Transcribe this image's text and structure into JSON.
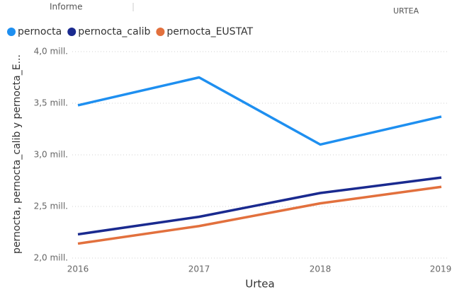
{
  "header_texts": [
    "Informe",
    "URTEA"
  ],
  "chart_data": {
    "type": "line",
    "x_label": "Urtea",
    "y_label": "pernocta, pernocta_calib y pernocta_E...",
    "x": [
      2016,
      2017,
      2018,
      2019
    ],
    "xlim": [
      2016,
      2019
    ],
    "xticks": [
      2016,
      2017,
      2018,
      2019
    ],
    "ylim": [
      2000000,
      4000000
    ],
    "yticks": [
      {
        "value": 2000000,
        "label": "2,0 mill."
      },
      {
        "value": 2500000,
        "label": "2,5 mill."
      },
      {
        "value": 3000000,
        "label": "3,0 mill."
      },
      {
        "value": 3500000,
        "label": "3,5 mill."
      },
      {
        "value": 4000000,
        "label": "4,0 mill."
      }
    ],
    "grid": true,
    "legend": "top-left",
    "series": [
      {
        "name": "pernocta",
        "color": "#1e8ff0",
        "values": [
          3480000,
          3750000,
          3100000,
          3370000
        ]
      },
      {
        "name": "pernocta_calib",
        "color": "#1a2a8f",
        "values": [
          2230000,
          2400000,
          2630000,
          2780000
        ]
      },
      {
        "name": "pernocta_EUSTAT",
        "color": "#e2703d",
        "values": [
          2140000,
          2310000,
          2530000,
          2690000
        ]
      }
    ]
  }
}
